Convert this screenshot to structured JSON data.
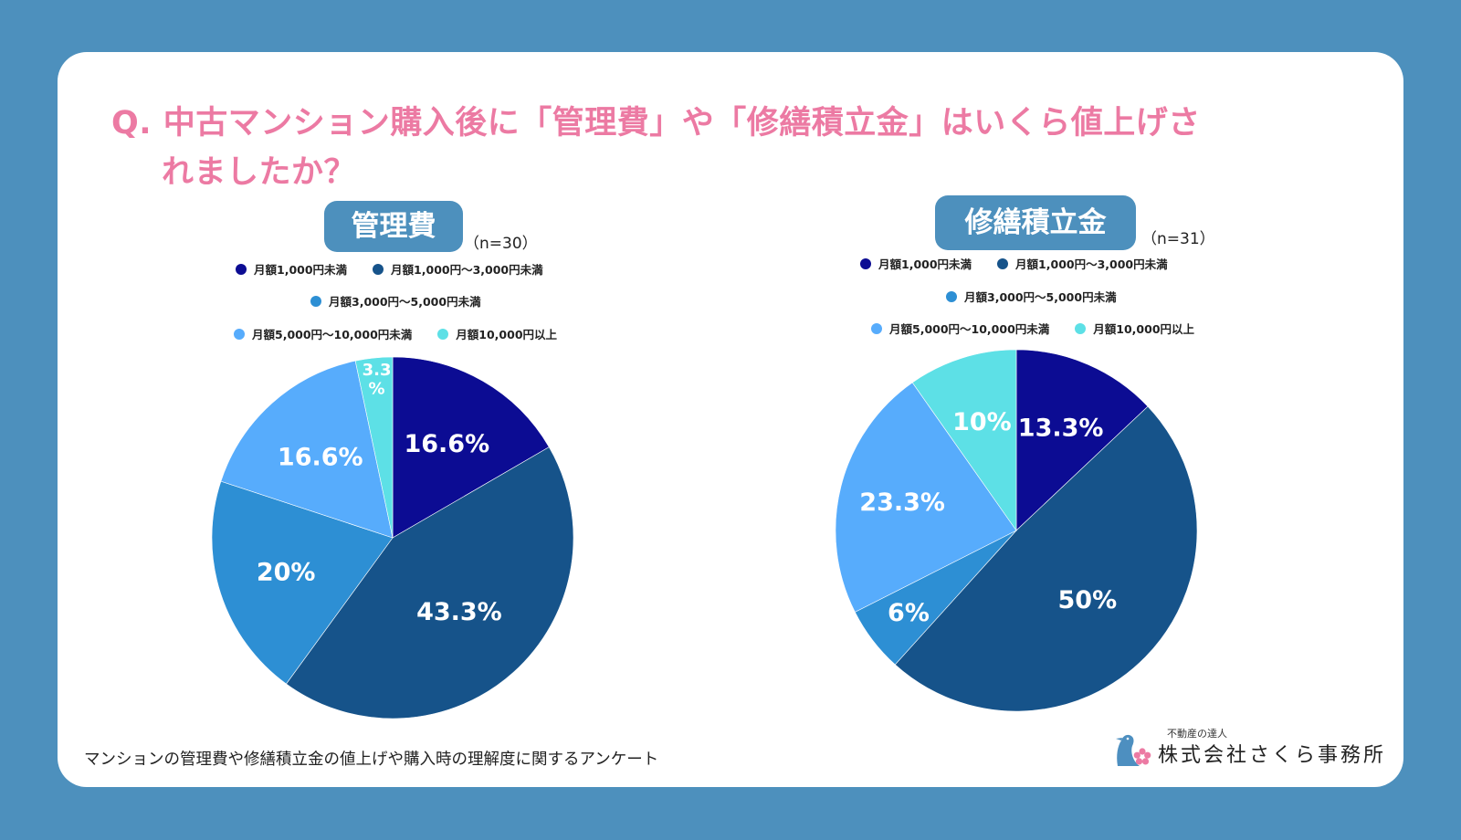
{
  "title": {
    "line1": "Q. 中古マンション購入後に「管理費」や「修繕積立金」はいくら値上げさ",
    "line2": "れましたか？"
  },
  "colors": {
    "background": "#4d90bd",
    "title": "#ec7aa3",
    "badge": "#4d90bd"
  },
  "legend_labels": [
    "月額1,000円未満",
    "月額1,000円〜3,000円未満",
    "月額3,000円〜5,000円未満",
    "月額5,000円〜10,000円未満",
    "月額10,000円以上"
  ],
  "chart_data": [
    {
      "type": "pie",
      "title": "管理費",
      "sample_size": "（n=30）",
      "categories": [
        "月額1,000円未満",
        "月額1,000円〜3,000円未満",
        "月額3,000円〜5,000円未満",
        "月額5,000円〜10,000円未満",
        "月額10,000円以上"
      ],
      "values": [
        16.6,
        43.3,
        20,
        16.6,
        3.3
      ],
      "labels": [
        "16.6%",
        "43.3%",
        "20%",
        "16.6%",
        "3.3%"
      ],
      "colors": [
        "#0c0c93",
        "#16538a",
        "#2d8fd4",
        "#57acfc",
        "#5de0e6"
      ],
      "legend": "top",
      "start": "12 o'clock, clockwise"
    },
    {
      "type": "pie",
      "title": "修繕積立金",
      "sample_size": "（n=31）",
      "categories": [
        "月額1,000円未満",
        "月額1,000円〜3,000円未満",
        "月額3,000円〜5,000円未満",
        "月額5,000円〜10,000円未満",
        "月額10,000円以上"
      ],
      "values": [
        13.3,
        50,
        6,
        23.3,
        10
      ],
      "labels": [
        "13.3%",
        "50%",
        "6%",
        "23.3%",
        "10%"
      ],
      "colors": [
        "#0c0c93",
        "#16538a",
        "#2d8fd4",
        "#57acfc",
        "#5de0e6"
      ],
      "legend": "top",
      "start": "12 o'clock, clockwise"
    }
  ],
  "footer": {
    "note": "マンションの管理費や修繕積立金の値上げや購入時の理解度に関するアンケート",
    "logo_tagline": "不動産の達人",
    "logo_name": "株式会社さくら事務所"
  }
}
